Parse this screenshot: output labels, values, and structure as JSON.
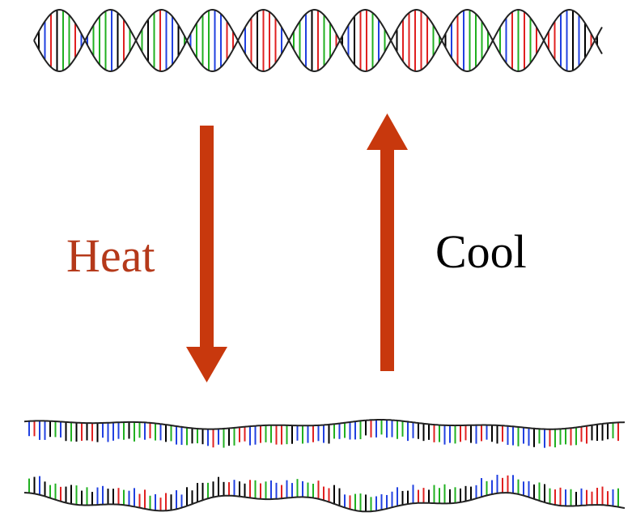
{
  "labels": {
    "heat": "Heat",
    "cool": "Cool"
  }
}
